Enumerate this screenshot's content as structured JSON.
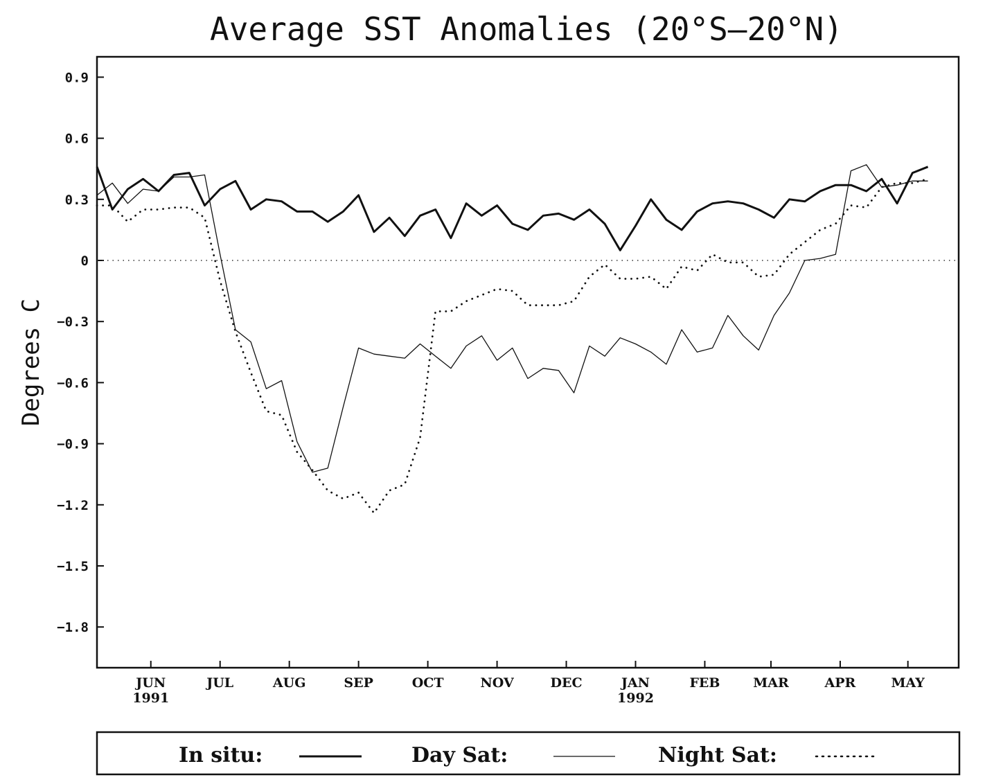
{
  "chart_data": {
    "type": "line",
    "title": "Average SST Anomalies (20°S–20°N)",
    "ylabel": "Degrees C",
    "xlabel": "",
    "ylim": [
      -2.0,
      1.0
    ],
    "yticks": [
      0.9,
      0.6,
      0.3,
      0,
      -0.3,
      -0.6,
      -0.9,
      -1.2,
      -1.5,
      -1.8
    ],
    "ytick_labels": [
      "0.9",
      "0.6",
      "0.3",
      "0",
      "−0.3",
      "−0.6",
      "−0.9",
      "−1.2",
      "−1.5",
      "−1.8"
    ],
    "xlim": [
      0,
      56
    ],
    "xticks": [
      {
        "x": 3.5,
        "month": "JUN",
        "year": "1991"
      },
      {
        "x": 8.0,
        "month": "JUL",
        "year": ""
      },
      {
        "x": 12.5,
        "month": "AUG",
        "year": ""
      },
      {
        "x": 17.0,
        "month": "SEP",
        "year": ""
      },
      {
        "x": 21.5,
        "month": "OCT",
        "year": ""
      },
      {
        "x": 26.0,
        "month": "NOV",
        "year": ""
      },
      {
        "x": 30.5,
        "month": "DEC",
        "year": ""
      },
      {
        "x": 35.0,
        "month": "JAN",
        "year": "1992"
      },
      {
        "x": 39.5,
        "month": "FEB",
        "year": ""
      },
      {
        "x": 43.8,
        "month": "MAR",
        "year": ""
      },
      {
        "x": 48.3,
        "month": "APR",
        "year": ""
      },
      {
        "x": 52.7,
        "month": "MAY",
        "year": ""
      }
    ],
    "zero_line": true,
    "legend_position": "bottom",
    "series": [
      {
        "name": "In situ:",
        "style": "thick",
        "values": [
          [
            0,
            0.46
          ],
          [
            1,
            0.25
          ],
          [
            2,
            0.35
          ],
          [
            3,
            0.4
          ],
          [
            4,
            0.34
          ],
          [
            5,
            0.42
          ],
          [
            6,
            0.43
          ],
          [
            7,
            0.27
          ],
          [
            8,
            0.35
          ],
          [
            9,
            0.39
          ],
          [
            10,
            0.25
          ],
          [
            11,
            0.3
          ],
          [
            12,
            0.29
          ],
          [
            13,
            0.24
          ],
          [
            14,
            0.24
          ],
          [
            15,
            0.19
          ],
          [
            16,
            0.24
          ],
          [
            17,
            0.32
          ],
          [
            18,
            0.14
          ],
          [
            19,
            0.21
          ],
          [
            20,
            0.12
          ],
          [
            21,
            0.22
          ],
          [
            22,
            0.25
          ],
          [
            23,
            0.11
          ],
          [
            24,
            0.28
          ],
          [
            25,
            0.22
          ],
          [
            26,
            0.27
          ],
          [
            27,
            0.18
          ],
          [
            28,
            0.15
          ],
          [
            29,
            0.22
          ],
          [
            30,
            0.23
          ],
          [
            31,
            0.2
          ],
          [
            32,
            0.25
          ],
          [
            33,
            0.18
          ],
          [
            34,
            0.05
          ],
          [
            35,
            0.17
          ],
          [
            36,
            0.3
          ],
          [
            37,
            0.2
          ],
          [
            38,
            0.15
          ],
          [
            39,
            0.24
          ],
          [
            40,
            0.28
          ],
          [
            41,
            0.29
          ],
          [
            42,
            0.28
          ],
          [
            43,
            0.25
          ],
          [
            44,
            0.21
          ],
          [
            45,
            0.3
          ],
          [
            46,
            0.29
          ],
          [
            47,
            0.34
          ],
          [
            48,
            0.37
          ],
          [
            49,
            0.37
          ],
          [
            50,
            0.34
          ],
          [
            51,
            0.4
          ],
          [
            52,
            0.28
          ],
          [
            53,
            0.43
          ],
          [
            54,
            0.46
          ]
        ]
      },
      {
        "name": "Day Sat:",
        "style": "thin",
        "values": [
          [
            0,
            0.32
          ],
          [
            1,
            0.38
          ],
          [
            2,
            0.28
          ],
          [
            3,
            0.35
          ],
          [
            4,
            0.34
          ],
          [
            5,
            0.41
          ],
          [
            6,
            0.41
          ],
          [
            7,
            0.42
          ],
          [
            8,
            0.03
          ],
          [
            9,
            -0.34
          ],
          [
            10,
            -0.4
          ],
          [
            11,
            -0.63
          ],
          [
            12,
            -0.59
          ],
          [
            13,
            -0.89
          ],
          [
            14,
            -1.04
          ],
          [
            15,
            -1.02
          ],
          [
            16,
            -0.72
          ],
          [
            17,
            -0.43
          ],
          [
            18,
            -0.46
          ],
          [
            19,
            -0.47
          ],
          [
            20,
            -0.48
          ],
          [
            21,
            -0.41
          ],
          [
            22,
            -0.47
          ],
          [
            23,
            -0.53
          ],
          [
            24,
            -0.42
          ],
          [
            25,
            -0.37
          ],
          [
            26,
            -0.49
          ],
          [
            27,
            -0.43
          ],
          [
            28,
            -0.58
          ],
          [
            29,
            -0.53
          ],
          [
            30,
            -0.54
          ],
          [
            31,
            -0.65
          ],
          [
            32,
            -0.42
          ],
          [
            33,
            -0.47
          ],
          [
            34,
            -0.38
          ],
          [
            35,
            -0.41
          ],
          [
            36,
            -0.45
          ],
          [
            37,
            -0.51
          ],
          [
            38,
            -0.34
          ],
          [
            39,
            -0.45
          ],
          [
            40,
            -0.43
          ],
          [
            41,
            -0.27
          ],
          [
            42,
            -0.37
          ],
          [
            43,
            -0.44
          ],
          [
            44,
            -0.27
          ],
          [
            45,
            -0.16
          ],
          [
            46,
            0.0
          ],
          [
            47,
            0.01
          ],
          [
            48,
            0.03
          ],
          [
            49,
            0.44
          ],
          [
            50,
            0.47
          ],
          [
            51,
            0.36
          ],
          [
            52,
            0.37
          ],
          [
            53,
            0.39
          ],
          [
            54,
            0.39
          ]
        ]
      },
      {
        "name": "Night Sat:",
        "style": "dotted",
        "values": [
          [
            0,
            0.27
          ],
          [
            1,
            0.27
          ],
          [
            2,
            0.19
          ],
          [
            3,
            0.25
          ],
          [
            4,
            0.25
          ],
          [
            5,
            0.26
          ],
          [
            6,
            0.26
          ],
          [
            7,
            0.21
          ],
          [
            8,
            -0.1
          ],
          [
            9,
            -0.35
          ],
          [
            10,
            -0.55
          ],
          [
            11,
            -0.74
          ],
          [
            12,
            -0.76
          ],
          [
            13,
            -0.94
          ],
          [
            14,
            -1.03
          ],
          [
            15,
            -1.13
          ],
          [
            16,
            -1.17
          ],
          [
            17,
            -1.14
          ],
          [
            18,
            -1.24
          ],
          [
            19,
            -1.13
          ],
          [
            20,
            -1.1
          ],
          [
            21,
            -0.87
          ],
          [
            22,
            -0.25
          ],
          [
            23,
            -0.25
          ],
          [
            24,
            -0.2
          ],
          [
            25,
            -0.17
          ],
          [
            26,
            -0.14
          ],
          [
            27,
            -0.15
          ],
          [
            28,
            -0.22
          ],
          [
            29,
            -0.22
          ],
          [
            30,
            -0.22
          ],
          [
            31,
            -0.2
          ],
          [
            32,
            -0.08
          ],
          [
            33,
            -0.02
          ],
          [
            34,
            -0.09
          ],
          [
            35,
            -0.09
          ],
          [
            36,
            -0.08
          ],
          [
            37,
            -0.14
          ],
          [
            38,
            -0.03
          ],
          [
            39,
            -0.05
          ],
          [
            40,
            0.03
          ],
          [
            41,
            -0.01
          ],
          [
            42,
            -0.01
          ],
          [
            43,
            -0.08
          ],
          [
            44,
            -0.07
          ],
          [
            45,
            0.03
          ],
          [
            46,
            0.09
          ],
          [
            47,
            0.15
          ],
          [
            48,
            0.18
          ],
          [
            49,
            0.27
          ],
          [
            50,
            0.26
          ],
          [
            51,
            0.36
          ],
          [
            52,
            0.38
          ],
          [
            53,
            0.38
          ],
          [
            54,
            0.4
          ]
        ]
      }
    ]
  }
}
